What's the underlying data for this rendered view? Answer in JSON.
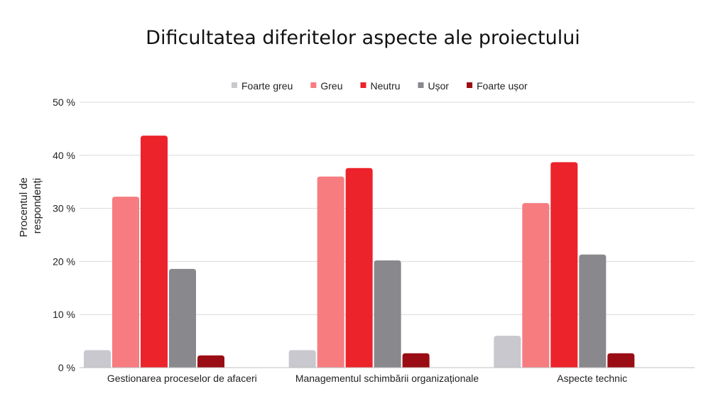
{
  "chart_data": {
    "type": "bar",
    "title": "Dificultatea diferitelor aspecte ale proiectului",
    "ylabel": [
      "Procentul de",
      "respondenți"
    ],
    "xlabel": "",
    "categories": [
      "Gestionarea proceselor de afaceri",
      "Managementul schimbării organizaționale",
      "Aspecte technic"
    ],
    "series": [
      {
        "name": "Foarte greu",
        "color": "#c8c8ce",
        "values": [
          3.3,
          3.3,
          6.0
        ]
      },
      {
        "name": "Greu",
        "color": "#f67c80",
        "values": [
          32.2,
          36.0,
          31.0
        ]
      },
      {
        "name": "Neutru",
        "color": "#ec232a",
        "values": [
          43.7,
          37.6,
          38.7
        ]
      },
      {
        "name": "Ușor",
        "color": "#88888d",
        "values": [
          18.6,
          20.2,
          21.3
        ]
      },
      {
        "name": "Foarte ușor",
        "color": "#9a0d14",
        "values": [
          2.3,
          2.7,
          2.7
        ]
      }
    ],
    "ylim": [
      0,
      50
    ],
    "yticks": [
      0,
      10,
      20,
      30,
      40,
      50
    ],
    "ytick_labels": [
      "0 %",
      "10 %",
      "20 %",
      "30 %",
      "40 %",
      "50 %"
    ],
    "grid": true,
    "legend_position": "top-center"
  }
}
